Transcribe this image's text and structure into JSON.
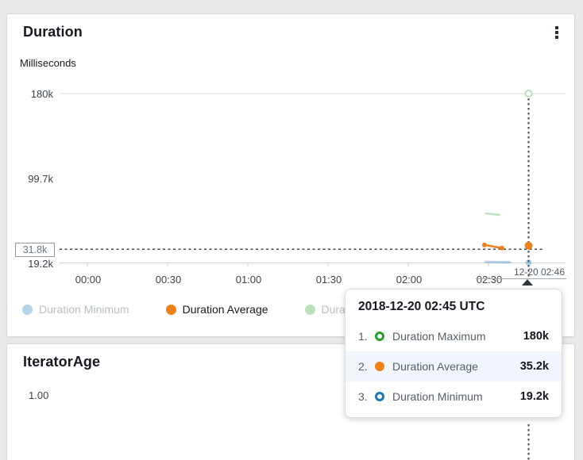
{
  "duration_card": {
    "title": "Duration",
    "y_axis_unit": "Milliseconds",
    "menu_icon": "kebab-menu-icon",
    "y_ticks": [
      "180k",
      "99.7k",
      "19.2k"
    ],
    "hover_y_label": "31.8k",
    "x_ticks": [
      "00:00",
      "00:30",
      "01:00",
      "01:30",
      "02:00",
      "02:30"
    ],
    "annotation_label": "12-20 02:46",
    "legend": [
      {
        "label": "Duration Minimum",
        "color": "#1f77b4",
        "dimmed": true
      },
      {
        "label": "Duration Average",
        "color": "#ec8218",
        "dimmed": false
      },
      {
        "label": "Duration Maximum",
        "color": "#2ca02c",
        "dimmed": true
      }
    ]
  },
  "tooltip": {
    "title": "2018-12-20 02:45 UTC",
    "rows": [
      {
        "index": "1.",
        "series": "Duration Maximum",
        "value": "180k",
        "color": "#2ca02c",
        "marker": "ring",
        "highlighted": false
      },
      {
        "index": "2.",
        "series": "Duration Average",
        "value": "35.2k",
        "color": "#ec8218",
        "marker": "dot",
        "highlighted": true
      },
      {
        "index": "3.",
        "series": "Duration Minimum",
        "value": "19.2k",
        "color": "#1f77b4",
        "marker": "ring",
        "highlighted": false
      }
    ]
  },
  "iterator_card": {
    "title": "IteratorAge",
    "y_ticks": [
      "1.00"
    ]
  },
  "chart_data": [
    {
      "type": "line",
      "title": "Duration",
      "ylabel": "Milliseconds",
      "y_domain_k": [
        19.2,
        180
      ],
      "y_tick_values_k": [
        180,
        99.7,
        19.2
      ],
      "x_tick_minutes": [
        0,
        30,
        60,
        90,
        120,
        150
      ],
      "x_tick_labels": [
        "00:00",
        "00:30",
        "01:00",
        "01:30",
        "02:00",
        "02:30"
      ],
      "grid": "top-line-and-baseline",
      "legend_position": "bottom",
      "hover": {
        "time_min": 165,
        "time_label": "2018-12-20 02:45 UTC",
        "value_k": 31.8,
        "value_label": "31.8k"
      },
      "annotation": {
        "label": "12-20 02:46",
        "time_min": 166
      },
      "series": [
        {
          "name": "Duration Minimum",
          "color": "#1f77b4",
          "dimmed": true,
          "line": [
            {
              "t": 149,
              "v": 19.8
            },
            {
              "t": 158,
              "v": 19.4
            }
          ],
          "line_width": 3,
          "line_markers": false,
          "points": [
            {
              "t": 165,
              "v": 19.2,
              "marker": "dot",
              "r": 4
            }
          ],
          "value_at_hover": "19.2k"
        },
        {
          "name": "Duration Maximum",
          "color": "#2ca02c",
          "dimmed": true,
          "line": [
            {
              "t": 149,
              "v": 66
            },
            {
              "t": 154,
              "v": 64.5
            }
          ],
          "line_width": 2.5,
          "line_markers": false,
          "points": [
            {
              "t": 165,
              "v": 180,
              "marker": "ring",
              "r": 4
            }
          ],
          "value_at_hover": "180k"
        },
        {
          "name": "Duration Average",
          "color": "#ec8218",
          "dimmed": false,
          "line": [
            {
              "t": 148.5,
              "v": 35.9
            },
            {
              "t": 155,
              "v": 33
            }
          ],
          "line_width": 2.5,
          "line_markers": true,
          "points": [
            {
              "t": 165,
              "v": 35.2,
              "marker": "dot",
              "r": 5
            }
          ],
          "value_at_hover": "35.2k"
        }
      ]
    },
    {
      "type": "line",
      "title": "IteratorAge",
      "y_tick_labels": [
        "1.00"
      ],
      "series": []
    }
  ]
}
